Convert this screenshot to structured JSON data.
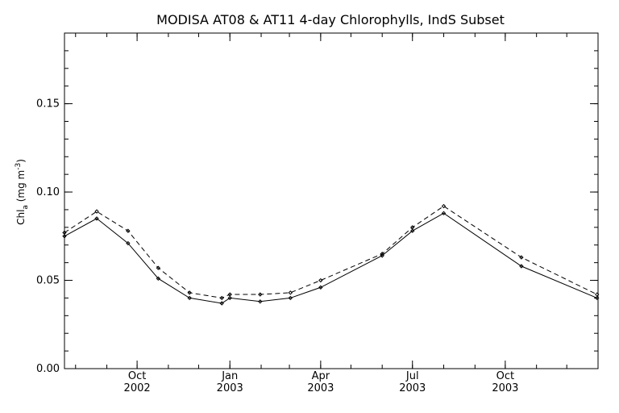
{
  "chart_data": {
    "type": "line",
    "title": "MODISA AT08 & AT11 4-day Chlorophylls, IndS Subset",
    "xlabel": "",
    "ylabel": {
      "base": "Chl",
      "subscript": "a",
      "units_prefix": " (mg m",
      "units_superscript": "-3",
      "units_suffix": ")"
    },
    "x_range": [
      "2002-07-21",
      "2004-01-01"
    ],
    "ylim": [
      0.0,
      0.19
    ],
    "y_ticks": [
      {
        "value": 0.0,
        "label": "0.00"
      },
      {
        "value": 0.05,
        "label": "0.05"
      },
      {
        "value": 0.1,
        "label": "0.10"
      },
      {
        "value": 0.15,
        "label": "0.15"
      }
    ],
    "x_ticks": [
      {
        "date": "2002-10-01",
        "month": "Oct",
        "year": "2002"
      },
      {
        "date": "2003-01-01",
        "month": "Jan",
        "year": "2003"
      },
      {
        "date": "2003-04-01",
        "month": "Apr",
        "year": "2003"
      },
      {
        "date": "2003-07-01",
        "month": "Jul",
        "year": "2003"
      },
      {
        "date": "2003-10-01",
        "month": "Oct",
        "year": "2003"
      }
    ],
    "series": [
      {
        "style": "solid",
        "points": [
          {
            "x": "2002-07-21",
            "y": 0.075
          },
          {
            "x": "2002-08-22",
            "y": 0.085
          },
          {
            "x": "2002-09-22",
            "y": 0.071
          },
          {
            "x": "2002-10-22",
            "y": 0.051
          },
          {
            "x": "2002-11-22",
            "y": 0.04
          },
          {
            "x": "2002-12-24",
            "y": 0.037
          },
          {
            "x": "2003-01-01",
            "y": 0.04
          },
          {
            "x": "2003-01-31",
            "y": 0.038
          },
          {
            "x": "2003-03-02",
            "y": 0.04
          },
          {
            "x": "2003-04-01",
            "y": 0.046
          },
          {
            "x": "2003-06-01",
            "y": 0.064
          },
          {
            "x": "2003-07-01",
            "y": 0.078
          },
          {
            "x": "2003-08-01",
            "y": 0.088
          },
          {
            "x": "2003-10-17",
            "y": 0.058
          },
          {
            "x": "2003-12-31",
            "y": 0.04
          }
        ]
      },
      {
        "style": "dashed",
        "points": [
          {
            "x": "2002-07-21",
            "y": 0.077
          },
          {
            "x": "2002-08-22",
            "y": 0.089
          },
          {
            "x": "2002-09-22",
            "y": 0.078
          },
          {
            "x": "2002-10-22",
            "y": 0.057
          },
          {
            "x": "2002-11-22",
            "y": 0.043
          },
          {
            "x": "2002-12-24",
            "y": 0.04
          },
          {
            "x": "2003-01-01",
            "y": 0.042
          },
          {
            "x": "2003-01-31",
            "y": 0.042
          },
          {
            "x": "2003-03-02",
            "y": 0.043
          },
          {
            "x": "2003-04-01",
            "y": 0.05
          },
          {
            "x": "2003-06-01",
            "y": 0.065
          },
          {
            "x": "2003-07-01",
            "y": 0.08
          },
          {
            "x": "2003-08-01",
            "y": 0.092
          },
          {
            "x": "2003-10-17",
            "y": 0.063
          },
          {
            "x": "2003-12-31",
            "y": 0.042
          }
        ]
      }
    ],
    "grid": false,
    "legend": "none"
  }
}
